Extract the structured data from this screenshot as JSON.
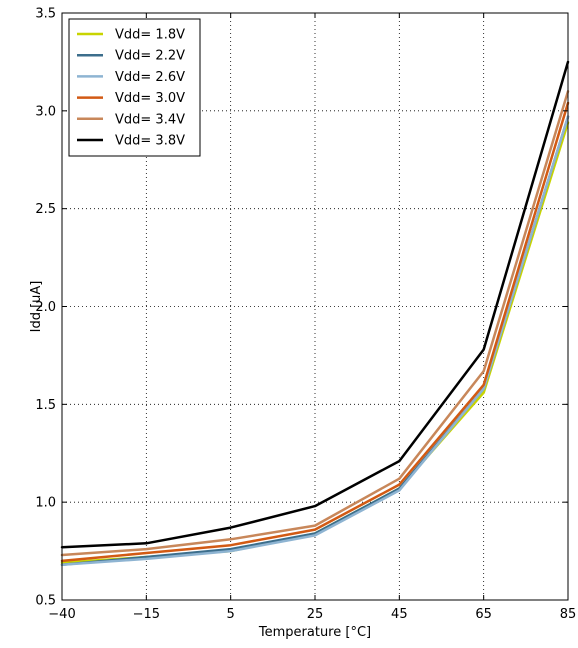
{
  "chart_data": {
    "type": "line",
    "title": "",
    "xlabel": "Temperature [°C]",
    "ylabel": "Idd [uA]",
    "x": [
      -40,
      -15,
      5,
      25,
      45,
      65,
      85
    ],
    "x_tick_labels": [
      "−40",
      "−15",
      "5",
      "25",
      "45",
      "65",
      "85"
    ],
    "ylim": [
      0.5,
      3.5
    ],
    "y_ticks": [
      0.5,
      1.0,
      1.5,
      2.0,
      2.5,
      3.0,
      3.5
    ],
    "y_tick_labels": [
      "0.5",
      "1.0",
      "1.5",
      "2.0",
      "2.5",
      "3.0",
      "3.5"
    ],
    "grid": true,
    "legend_position": "top-left",
    "series": [
      {
        "name": "Vdd= 1.8V",
        "color": "#c8d400",
        "values": [
          0.69,
          0.72,
          0.75,
          0.84,
          1.07,
          1.56,
          2.94
        ]
      },
      {
        "name": "Vdd= 2.2V",
        "color": "#3c6e8c",
        "values": [
          0.68,
          0.72,
          0.76,
          0.84,
          1.07,
          1.58,
          2.97
        ]
      },
      {
        "name": "Vdd= 2.6V",
        "color": "#8eb4d2",
        "values": [
          0.68,
          0.71,
          0.75,
          0.83,
          1.06,
          1.58,
          2.97
        ]
      },
      {
        "name": "Vdd= 3.0V",
        "color": "#d25a14",
        "values": [
          0.7,
          0.74,
          0.78,
          0.86,
          1.09,
          1.6,
          3.04
        ]
      },
      {
        "name": "Vdd= 3.4V",
        "color": "#c8875a",
        "values": [
          0.73,
          0.76,
          0.81,
          0.88,
          1.12,
          1.67,
          3.1
        ]
      },
      {
        "name": "Vdd= 3.8V",
        "color": "#000000",
        "values": [
          0.77,
          0.79,
          0.87,
          0.98,
          1.21,
          1.78,
          3.25
        ]
      }
    ]
  }
}
